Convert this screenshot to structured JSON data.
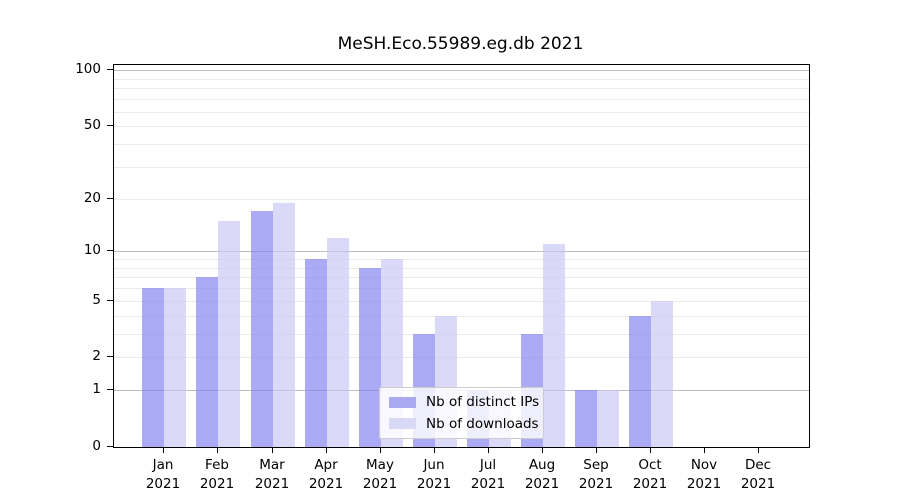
{
  "title": "MeSH.Eco.55989.eg.db 2021",
  "chart_data": {
    "type": "bar",
    "title": "MeSH.Eco.55989.eg.db 2021",
    "scale": "log10(1+x)",
    "categories": [
      "Jan",
      "Feb",
      "Mar",
      "Apr",
      "May",
      "Jun",
      "Jul",
      "Aug",
      "Sep",
      "Oct",
      "Nov",
      "Dec"
    ],
    "year": "2021",
    "series": [
      {
        "name": "Nb of distinct IPs",
        "swatch_color": "#a9a9f0",
        "fill_rgba": "rgba(130,130,240,0.68)",
        "values": [
          6,
          7,
          17,
          9,
          8,
          3,
          1,
          3,
          1,
          4,
          0,
          0
        ]
      },
      {
        "name": "Nb of downloads",
        "swatch_color": "#d8d8f7",
        "fill_rgba": "rgba(200,200,245,0.68)",
        "values": [
          6,
          15,
          19,
          12,
          9,
          4,
          1,
          11,
          1,
          5,
          0,
          0
        ]
      }
    ],
    "yticks": [
      0,
      1,
      2,
      5,
      10,
      20,
      50,
      100
    ],
    "gridlines": [
      1,
      2,
      3,
      4,
      5,
      6,
      7,
      8,
      9,
      10,
      20,
      30,
      40,
      50,
      60,
      70,
      80,
      90,
      100
    ],
    "decade_gridlines": [
      1,
      10,
      100
    ],
    "gridline_color": "#ebebeb",
    "decade_gridline_color": "#bdbdbd",
    "ylim": [
      0,
      107
    ],
    "legend_position": "bottom-center",
    "legend_entries": [
      "Nb of distinct IPs",
      "Nb of downloads"
    ]
  }
}
